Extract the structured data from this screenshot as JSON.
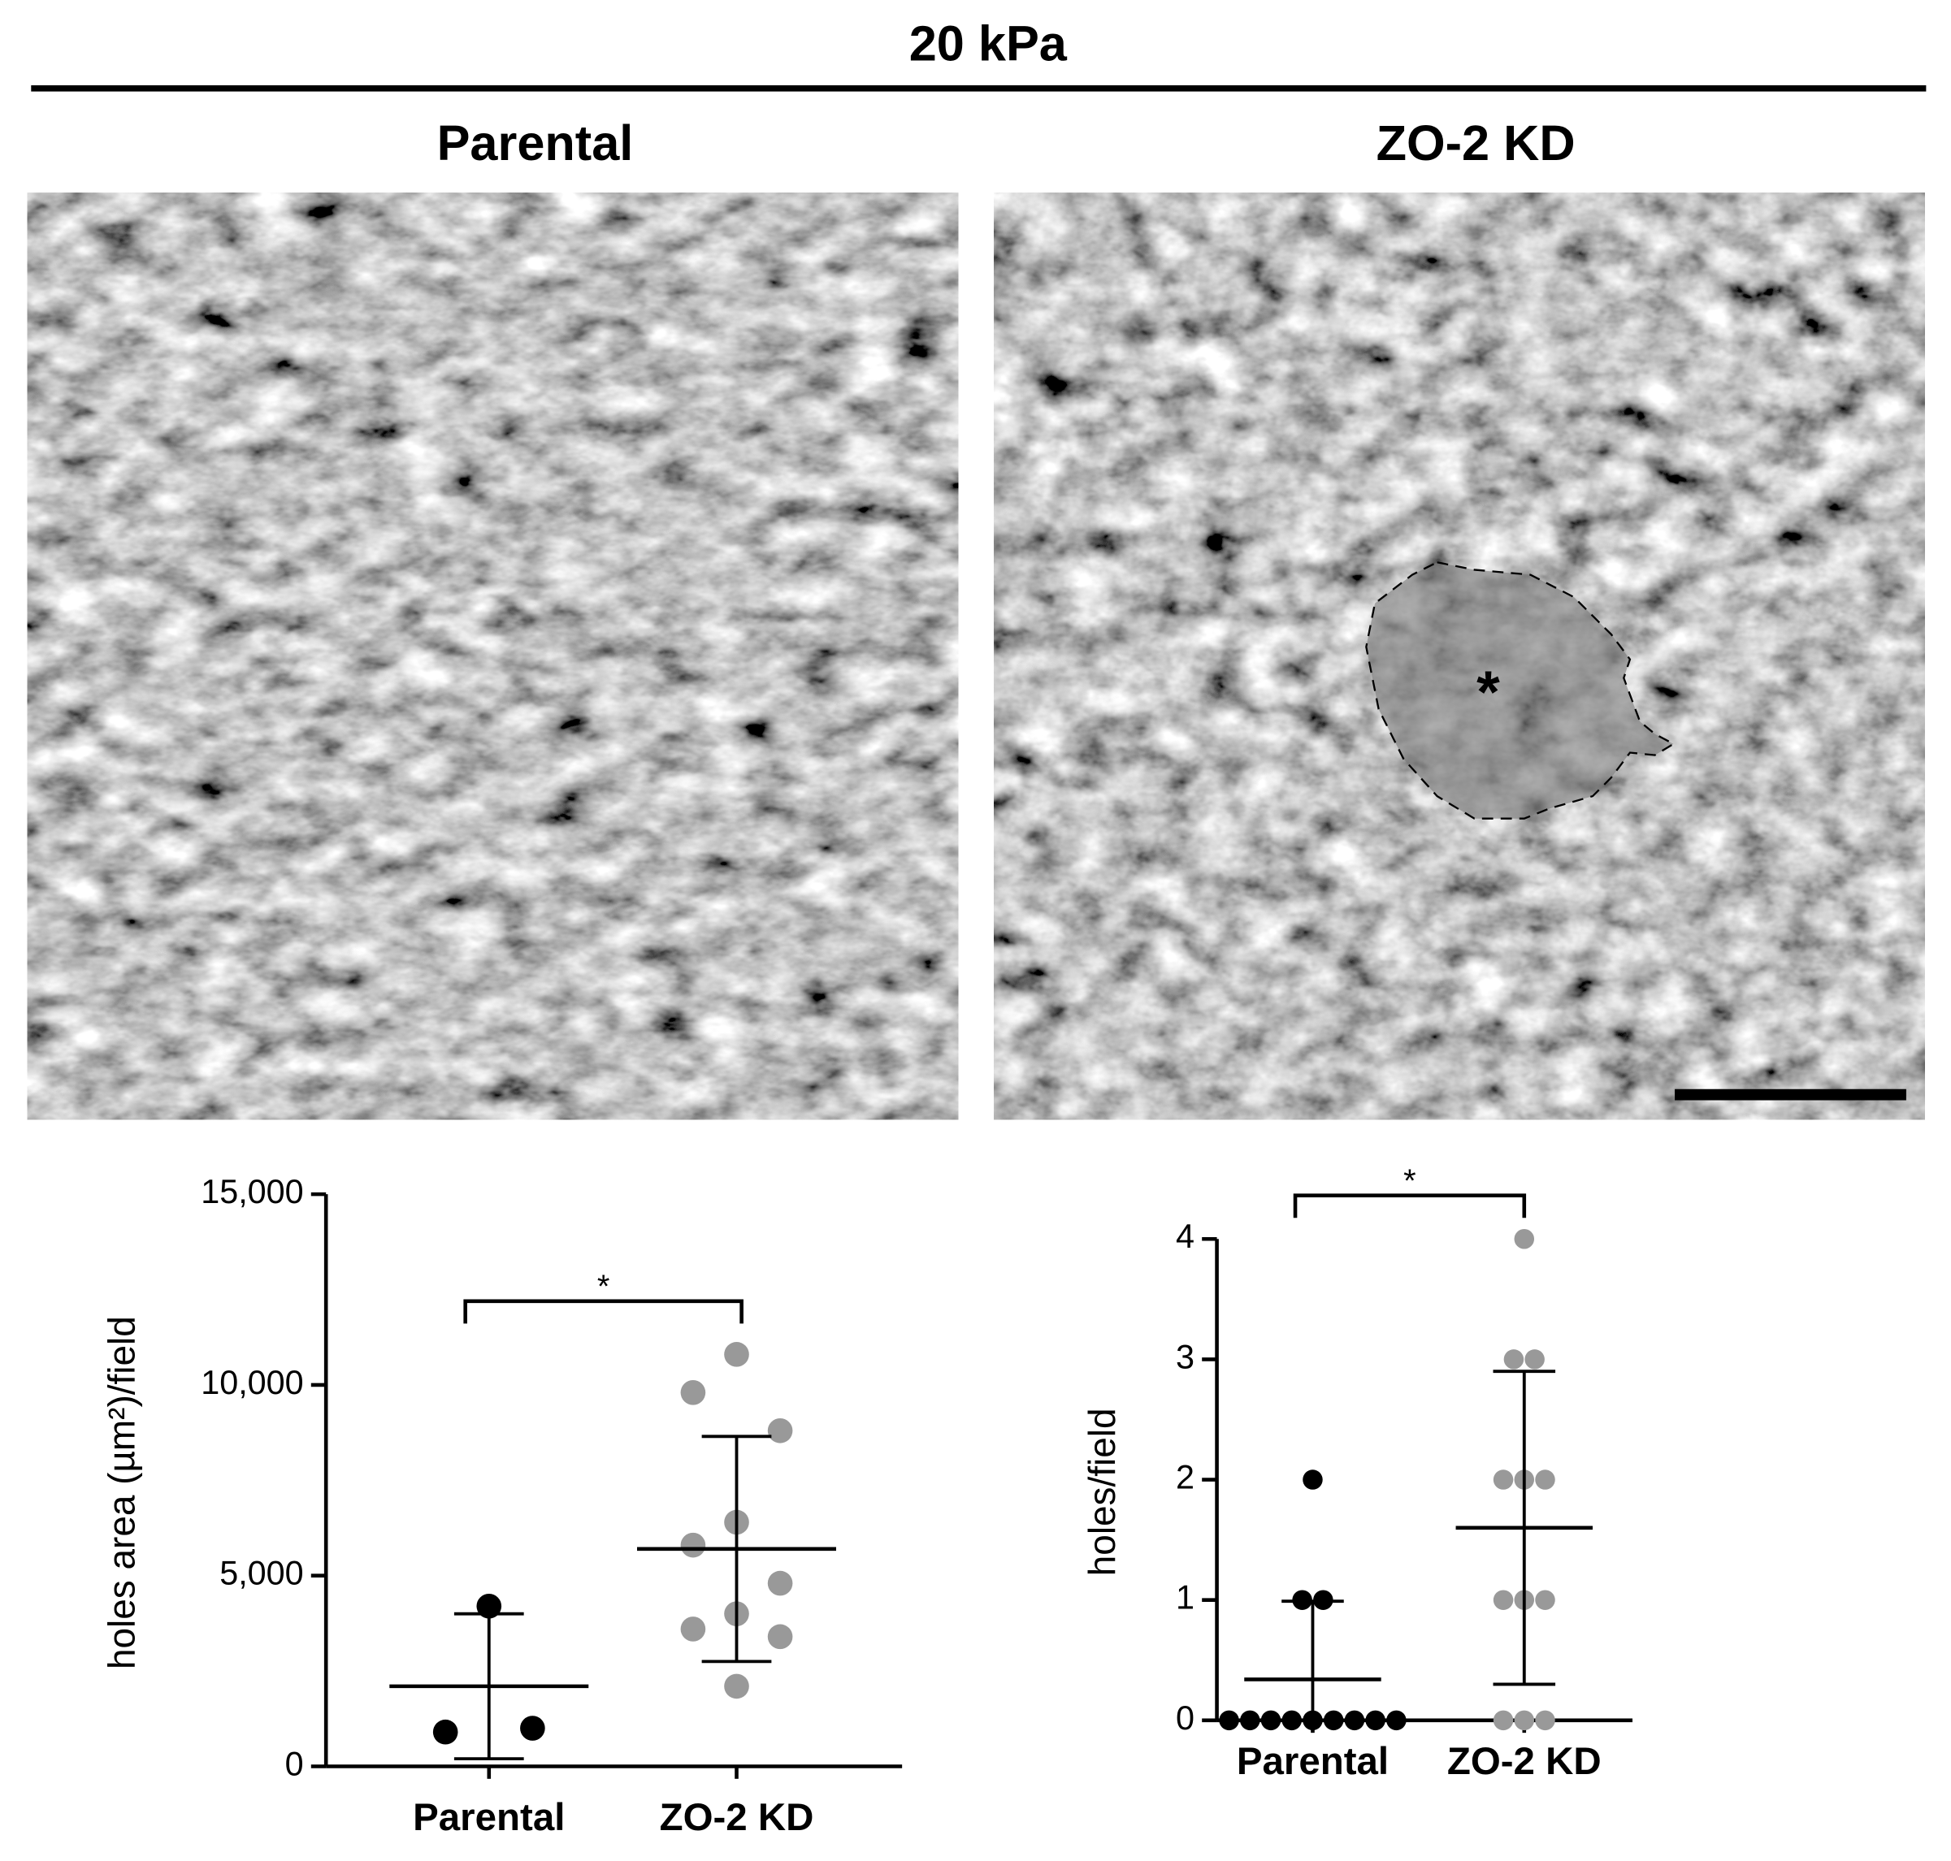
{
  "figure": {
    "title": "20 kPa",
    "panel_titles": [
      "Parental",
      "ZO-2 KD"
    ],
    "annotation": "*"
  },
  "chart_data": [
    {
      "type": "dotplot",
      "ylabel": "holes area (µm²)/field",
      "categories": [
        "Parental",
        "ZO-2 KD"
      ],
      "colors": [
        "#000000",
        "#999999"
      ],
      "points": [
        [
          4200,
          900,
          1000
        ],
        [
          10800,
          9800,
          8800,
          6400,
          5800,
          4800,
          4000,
          3600,
          3400,
          2100
        ]
      ],
      "means": [
        2100,
        5700
      ],
      "errors": [
        1900,
        2950
      ],
      "ylim": [
        0,
        15000
      ],
      "yticks": [
        0,
        {
          "value": 5000,
          "label": "5,000"
        },
        {
          "value": 10000,
          "label": "10,000"
        },
        {
          "value": 15000,
          "label": "15,000"
        }
      ],
      "significance": "*"
    },
    {
      "type": "dotplot",
      "ylabel": "holes/field",
      "categories": [
        "Parental",
        "ZO-2 KD"
      ],
      "colors": [
        "#000000",
        "#999999"
      ],
      "points": [
        [
          2,
          1,
          1,
          0,
          0,
          0,
          0,
          0,
          0,
          0,
          0,
          0
        ],
        [
          4,
          3,
          3,
          2,
          2,
          2,
          1,
          1,
          1,
          0,
          0,
          0
        ]
      ],
      "means": [
        0.34,
        1.6
      ],
      "errors": [
        0.65,
        1.3
      ],
      "ylim": [
        0,
        4
      ],
      "yticks": [
        0,
        1,
        2,
        3,
        4
      ],
      "significance": "*"
    }
  ]
}
